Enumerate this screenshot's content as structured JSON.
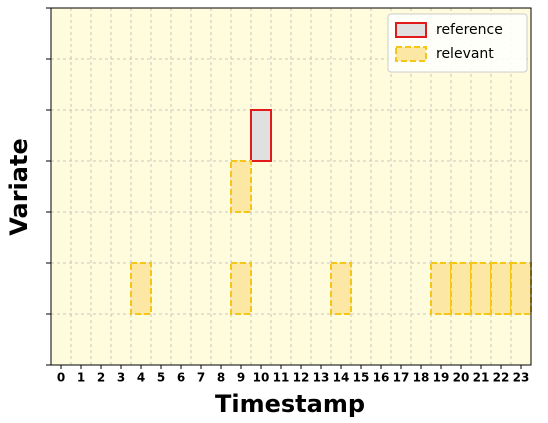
{
  "chart_data": {
    "type": "cells",
    "x_label": "Timestamp",
    "y_label": "Variate",
    "xlim": [
      -0.5,
      23.5
    ],
    "xticks": [
      0,
      1,
      2,
      3,
      4,
      5,
      6,
      7,
      8,
      9,
      10,
      11,
      12,
      13,
      14,
      15,
      16,
      17,
      18,
      19,
      20,
      21,
      22,
      23
    ],
    "ylim": [
      0,
      7
    ],
    "yticks": [
      0,
      1,
      2,
      3,
      4,
      5,
      6,
      7
    ],
    "grid": true,
    "background": "#fefcdc",
    "legend": "upper right",
    "series": [
      {
        "name": "reference",
        "color": "#e31a1c",
        "fill": "#e0e0e0",
        "dashed": false,
        "x": [
          10
        ],
        "y": [
          4
        ]
      },
      {
        "name": "relevant",
        "color": "#f5c518",
        "fill": "#fde7a4",
        "dashed": true,
        "x": [
          9,
          4,
          9,
          14,
          19,
          20,
          21,
          22,
          23
        ],
        "y": [
          3,
          1,
          1,
          1,
          1,
          1,
          1,
          1,
          1
        ]
      }
    ]
  }
}
